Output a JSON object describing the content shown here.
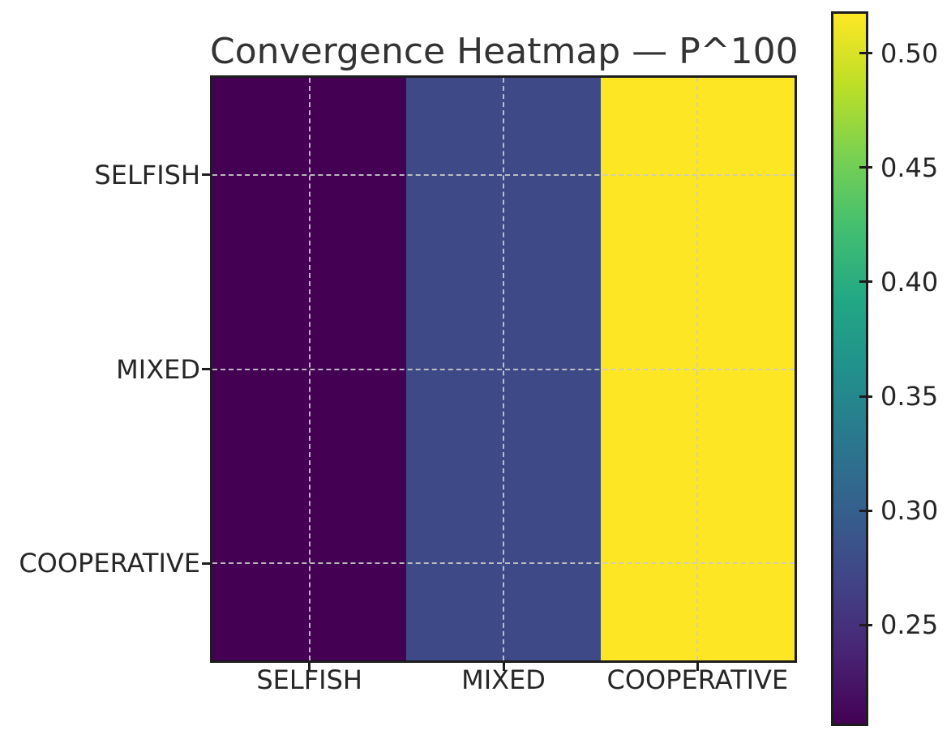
{
  "chart_data": {
    "type": "heatmap",
    "title": "Convergence Heatmap — P^100",
    "row_labels": [
      "SELFISH",
      "MIXED",
      "COOPERATIVE"
    ],
    "col_labels": [
      "SELFISH",
      "MIXED",
      "COOPERATIVE"
    ],
    "matrix": [
      [
        0.2069,
        0.2759,
        0.5172
      ],
      [
        0.2069,
        0.2759,
        0.5172
      ],
      [
        0.2069,
        0.2759,
        0.5172
      ]
    ],
    "vmin": 0.2069,
    "vmax": 0.5172,
    "colormap": "viridis",
    "colorbar_tick_labels": [
      "0.50",
      "0.45",
      "0.40",
      "0.35",
      "0.30",
      "0.25"
    ],
    "legend_position": "right-colorbar",
    "grid": "dashed lines at cell centers"
  },
  "colors": {
    "background": "#ffffff",
    "title_text": "#333333",
    "tick_label_text": "#262626",
    "spine": "#1d1d1d",
    "tick_mark": "#1d1d1d",
    "gridline": "rgba(202,202,202,0.9)",
    "cell_selfish": "#440154",
    "cell_mixed": "#3e4a88",
    "cell_cooperative": "#fde725",
    "viridis_stops": [
      {
        "t": 0.0,
        "hex": "#440154"
      },
      {
        "t": 0.1,
        "hex": "#482475"
      },
      {
        "t": 0.2,
        "hex": "#414487"
      },
      {
        "t": 0.3,
        "hex": "#355f8d"
      },
      {
        "t": 0.4,
        "hex": "#2a788e"
      },
      {
        "t": 0.5,
        "hex": "#21918c"
      },
      {
        "t": 0.6,
        "hex": "#22a884"
      },
      {
        "t": 0.7,
        "hex": "#44bf70"
      },
      {
        "t": 0.8,
        "hex": "#7ad151"
      },
      {
        "t": 0.9,
        "hex": "#bddf26"
      },
      {
        "t": 1.0,
        "hex": "#fde725"
      }
    ]
  }
}
